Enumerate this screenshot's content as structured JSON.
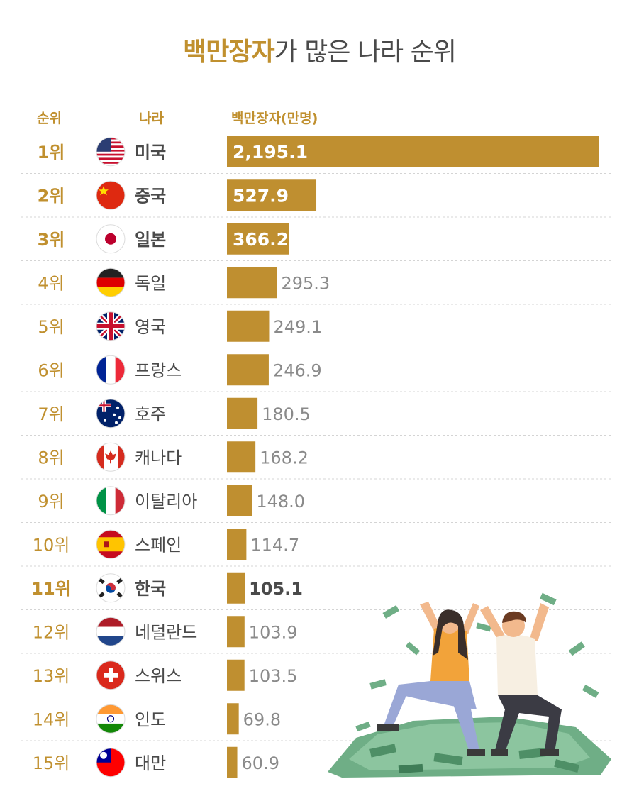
{
  "title": {
    "highlight": "백만장자",
    "rest": "가 많은 나라 순위"
  },
  "headers": {
    "rank": "순위",
    "country": "나라",
    "value": "백만장자(만명)"
  },
  "colors": {
    "accent": "#c0902f",
    "bar": "#bf8f30",
    "text": "#4a4a4a"
  },
  "chart_data": {
    "type": "bar",
    "orientation": "horizontal",
    "title": "백만장자가 많은 나라 순위",
    "xlabel": "백만장자(만명)",
    "ylabel": "",
    "xlim": [
      0,
      2195.1
    ],
    "grid": false,
    "ranks": [
      "1위",
      "2위",
      "3위",
      "4위",
      "5위",
      "6위",
      "7위",
      "8위",
      "9위",
      "10위",
      "11위",
      "12위",
      "13위",
      "14위",
      "15위"
    ],
    "categories": [
      "미국",
      "중국",
      "일본",
      "독일",
      "영국",
      "프랑스",
      "호주",
      "캐나다",
      "이탈리아",
      "스페인",
      "한국",
      "네덜란드",
      "스위스",
      "인도",
      "대만"
    ],
    "values": [
      2195.1,
      527.9,
      366.2,
      295.3,
      249.1,
      246.9,
      180.5,
      168.2,
      148.0,
      114.7,
      105.1,
      103.9,
      103.5,
      69.8,
      60.9
    ],
    "labels": [
      "2,195.1",
      "527.9",
      "366.2",
      "295.3",
      "249.1",
      "246.9",
      "180.5",
      "168.2",
      "148.0",
      "114.7",
      "105.1",
      "103.9",
      "103.5",
      "69.8",
      "60.9"
    ],
    "flags": [
      "us-flag-icon",
      "china-flag-icon",
      "japan-flag-icon",
      "germany-flag-icon",
      "uk-flag-icon",
      "france-flag-icon",
      "australia-flag-icon",
      "canada-flag-icon",
      "italy-flag-icon",
      "spain-flag-icon",
      "korea-flag-icon",
      "netherlands-flag-icon",
      "switzerland-flag-icon",
      "india-flag-icon",
      "taiwan-flag-icon"
    ],
    "highlighted": [
      0,
      1,
      2,
      10
    ]
  }
}
